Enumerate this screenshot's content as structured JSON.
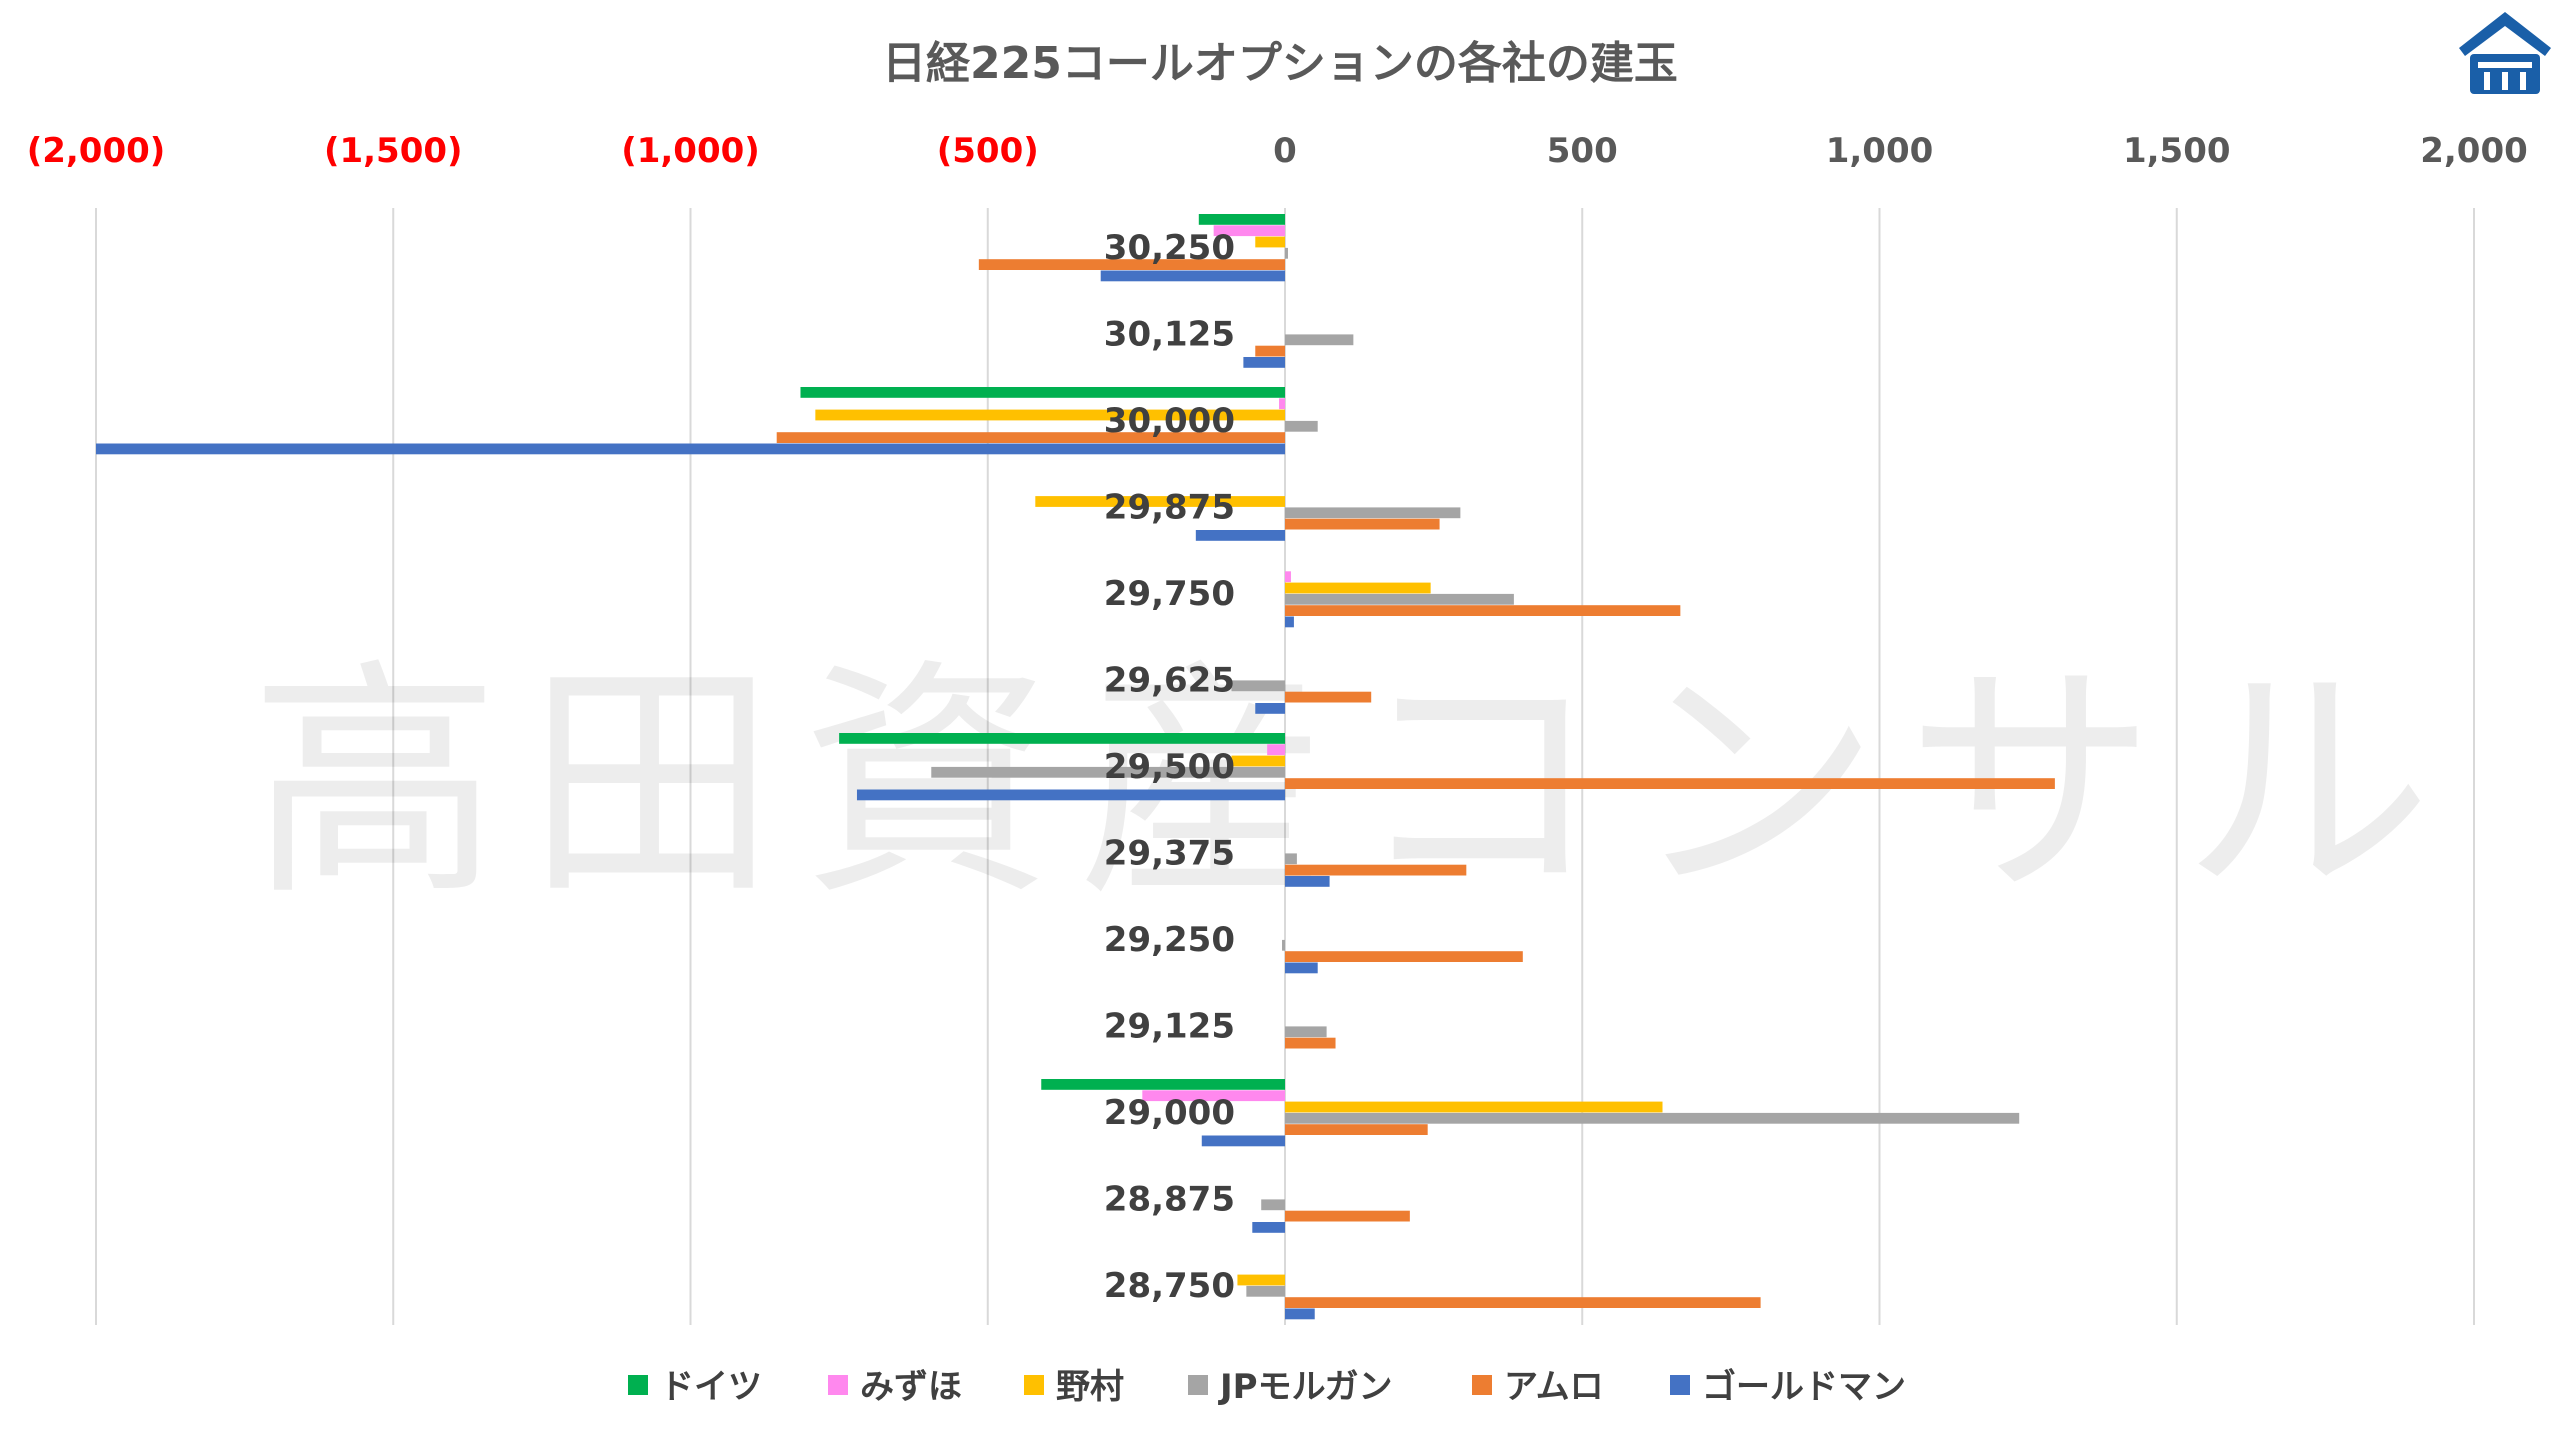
{
  "chart_data": {
    "type": "bar",
    "orientation": "horizontal",
    "title": "日経225コールオプションの各社の建玉",
    "watermark": "高田資産コンサル",
    "x_ticks": [
      "(2,000)",
      "(1,500)",
      "(1,000)",
      "(500)",
      "0",
      "500",
      "1,000",
      "1,500",
      "2,000"
    ],
    "xlim": [
      -2000,
      2000
    ],
    "grid": true,
    "legend_position": "bottom",
    "negative_tick_color": "#ff0000",
    "positive_tick_color": "#595959",
    "categories": [
      "30,250",
      "30,125",
      "30,000",
      "29,875",
      "29,750",
      "29,625",
      "29,500",
      "29,375",
      "29,250",
      "29,125",
      "29,000",
      "28,875",
      "28,750"
    ],
    "series": [
      {
        "name": "ドイツ",
        "color": "#00b050",
        "values": [
          -145,
          0,
          -815,
          0,
          0,
          0,
          -750,
          0,
          0,
          0,
          -410,
          0,
          0
        ]
      },
      {
        "name": "みずほ",
        "color": "#ff88ee",
        "values": [
          -120,
          0,
          -10,
          0,
          10,
          0,
          -30,
          0,
          0,
          0,
          -240,
          0,
          0
        ]
      },
      {
        "name": "野村",
        "color": "#ffc000",
        "values": [
          -50,
          0,
          -790,
          -420,
          245,
          0,
          -90,
          0,
          0,
          0,
          635,
          0,
          -80
        ]
      },
      {
        "name": "JPモルガン",
        "color": "#a5a5a5",
        "values": [
          5,
          115,
          55,
          295,
          385,
          -90,
          -595,
          20,
          -5,
          70,
          1235,
          -40,
          -65
        ]
      },
      {
        "name": "アムロ",
        "color": "#ed7d31",
        "values": [
          -515,
          -50,
          -855,
          260,
          665,
          145,
          1295,
          305,
          400,
          85,
          240,
          210,
          800
        ]
      },
      {
        "name": "ゴールドマン",
        "color": "#4472c4",
        "values": [
          -310,
          -70,
          -2000,
          -150,
          15,
          -50,
          -720,
          75,
          55,
          0,
          -140,
          -55,
          50
        ]
      }
    ]
  },
  "logo": {
    "name": "takada-logo",
    "color": "#1a5fa8"
  }
}
